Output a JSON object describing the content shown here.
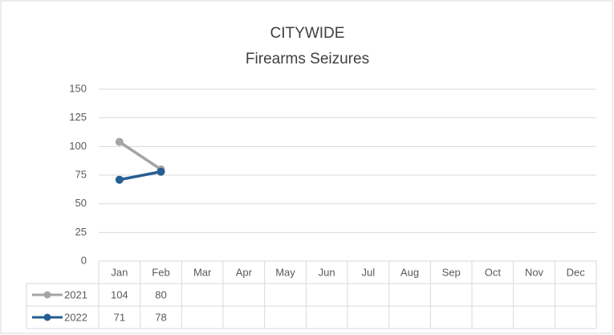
{
  "chart_data": {
    "type": "line",
    "title": "CITYWIDE",
    "subtitle": "Firearms Seizures",
    "categories": [
      "Jan",
      "Feb",
      "Mar",
      "Apr",
      "May",
      "Jun",
      "Jul",
      "Aug",
      "Sep",
      "Oct",
      "Nov",
      "Dec"
    ],
    "series": [
      {
        "name": "2021",
        "color": "#a5a5a5",
        "values": [
          104,
          80,
          null,
          null,
          null,
          null,
          null,
          null,
          null,
          null,
          null,
          null
        ]
      },
      {
        "name": "2022",
        "color": "#255e91",
        "values": [
          71,
          78,
          null,
          null,
          null,
          null,
          null,
          null,
          null,
          null,
          null,
          null
        ]
      }
    ],
    "ylim": [
      0,
      150
    ],
    "yticks": [
      0,
      25,
      50,
      75,
      100,
      125,
      150
    ],
    "grid": true
  }
}
